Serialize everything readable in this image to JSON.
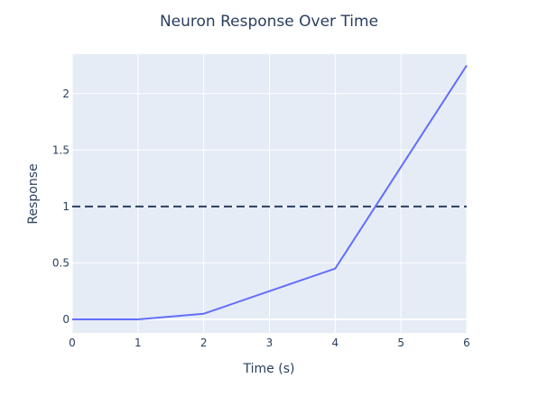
{
  "chart_data": {
    "type": "line",
    "title": "Neuron Response Over Time",
    "xlabel": "Time (s)",
    "ylabel": "Response",
    "x": [
      0,
      1,
      2,
      3,
      4,
      5,
      6
    ],
    "series": [
      {
        "values": [
          0,
          0,
          0.05,
          0.25,
          0.45,
          1.35,
          2.25
        ],
        "color": "#636efa"
      }
    ],
    "reference_line": {
      "y": 1,
      "style": "dashed",
      "color": "#2a3f5f"
    },
    "xlim": [
      0,
      6
    ],
    "ylim": [
      -0.12,
      2.35
    ],
    "xticks": [
      0,
      1,
      2,
      3,
      4,
      5,
      6
    ],
    "yticks": [
      0,
      0.5,
      1,
      1.5,
      2
    ],
    "xtick_labels": [
      "0",
      "1",
      "2",
      "3",
      "4",
      "5",
      "6"
    ],
    "ytick_labels": [
      "0",
      "0.5",
      "1",
      "1.5",
      "2"
    ],
    "grid": true,
    "colors": {
      "plot_bg": "#e5ecf6",
      "grid": "#ffffff",
      "text": "#2a3f5f"
    }
  }
}
